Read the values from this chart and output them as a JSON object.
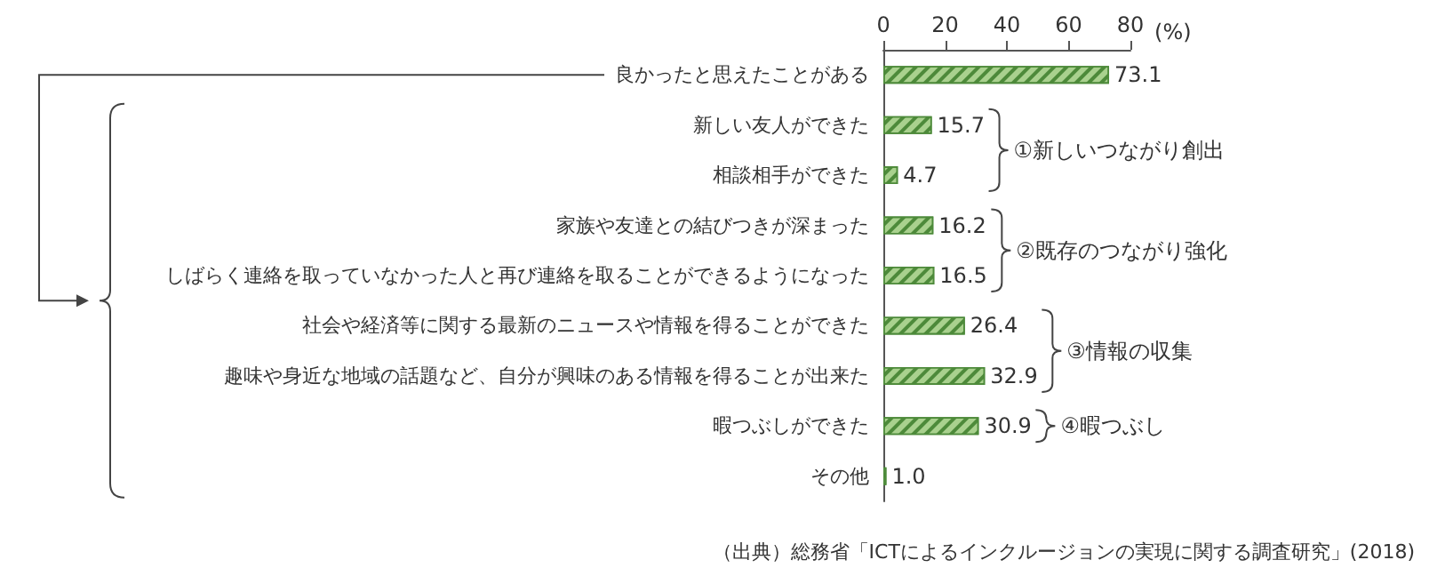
{
  "chart_data": {
    "type": "bar",
    "orientation": "horizontal",
    "categories": [
      "良かったと思えたことがある",
      "新しい友人ができた",
      "相談相手ができた",
      "家族や友達との結びつきが深まった",
      "しばらく連絡を取っていなかった人と再び連絡を取ることができるようになった",
      "社会や経済等に関する最新のニュースや情報を得ることができた",
      "趣味や身近な地域の話題など、自分が興味のある情報を得ることが出来た",
      "暇つぶしができた",
      "その他"
    ],
    "values": [
      73.1,
      15.7,
      4.7,
      16.2,
      16.5,
      26.4,
      32.9,
      30.9,
      1.0
    ],
    "value_labels": [
      "73.1",
      "15.7",
      "4.7",
      "16.2",
      "16.5",
      "26.4",
      "32.9",
      "30.9",
      "1.0"
    ],
    "color": "#a9d18e",
    "xlim": [
      0,
      80
    ],
    "xticks": [
      0,
      20,
      40,
      60,
      80
    ],
    "xlabel": "(%)",
    "grid": false,
    "annotations": [
      "①新しいつながり創出",
      "②既存のつながり強化",
      "③情報の収集",
      "④暇つぶし",
      "（出典）総務省「ICTによるインクルージョンの実現に関する調査研究」(2018)"
    ]
  }
}
